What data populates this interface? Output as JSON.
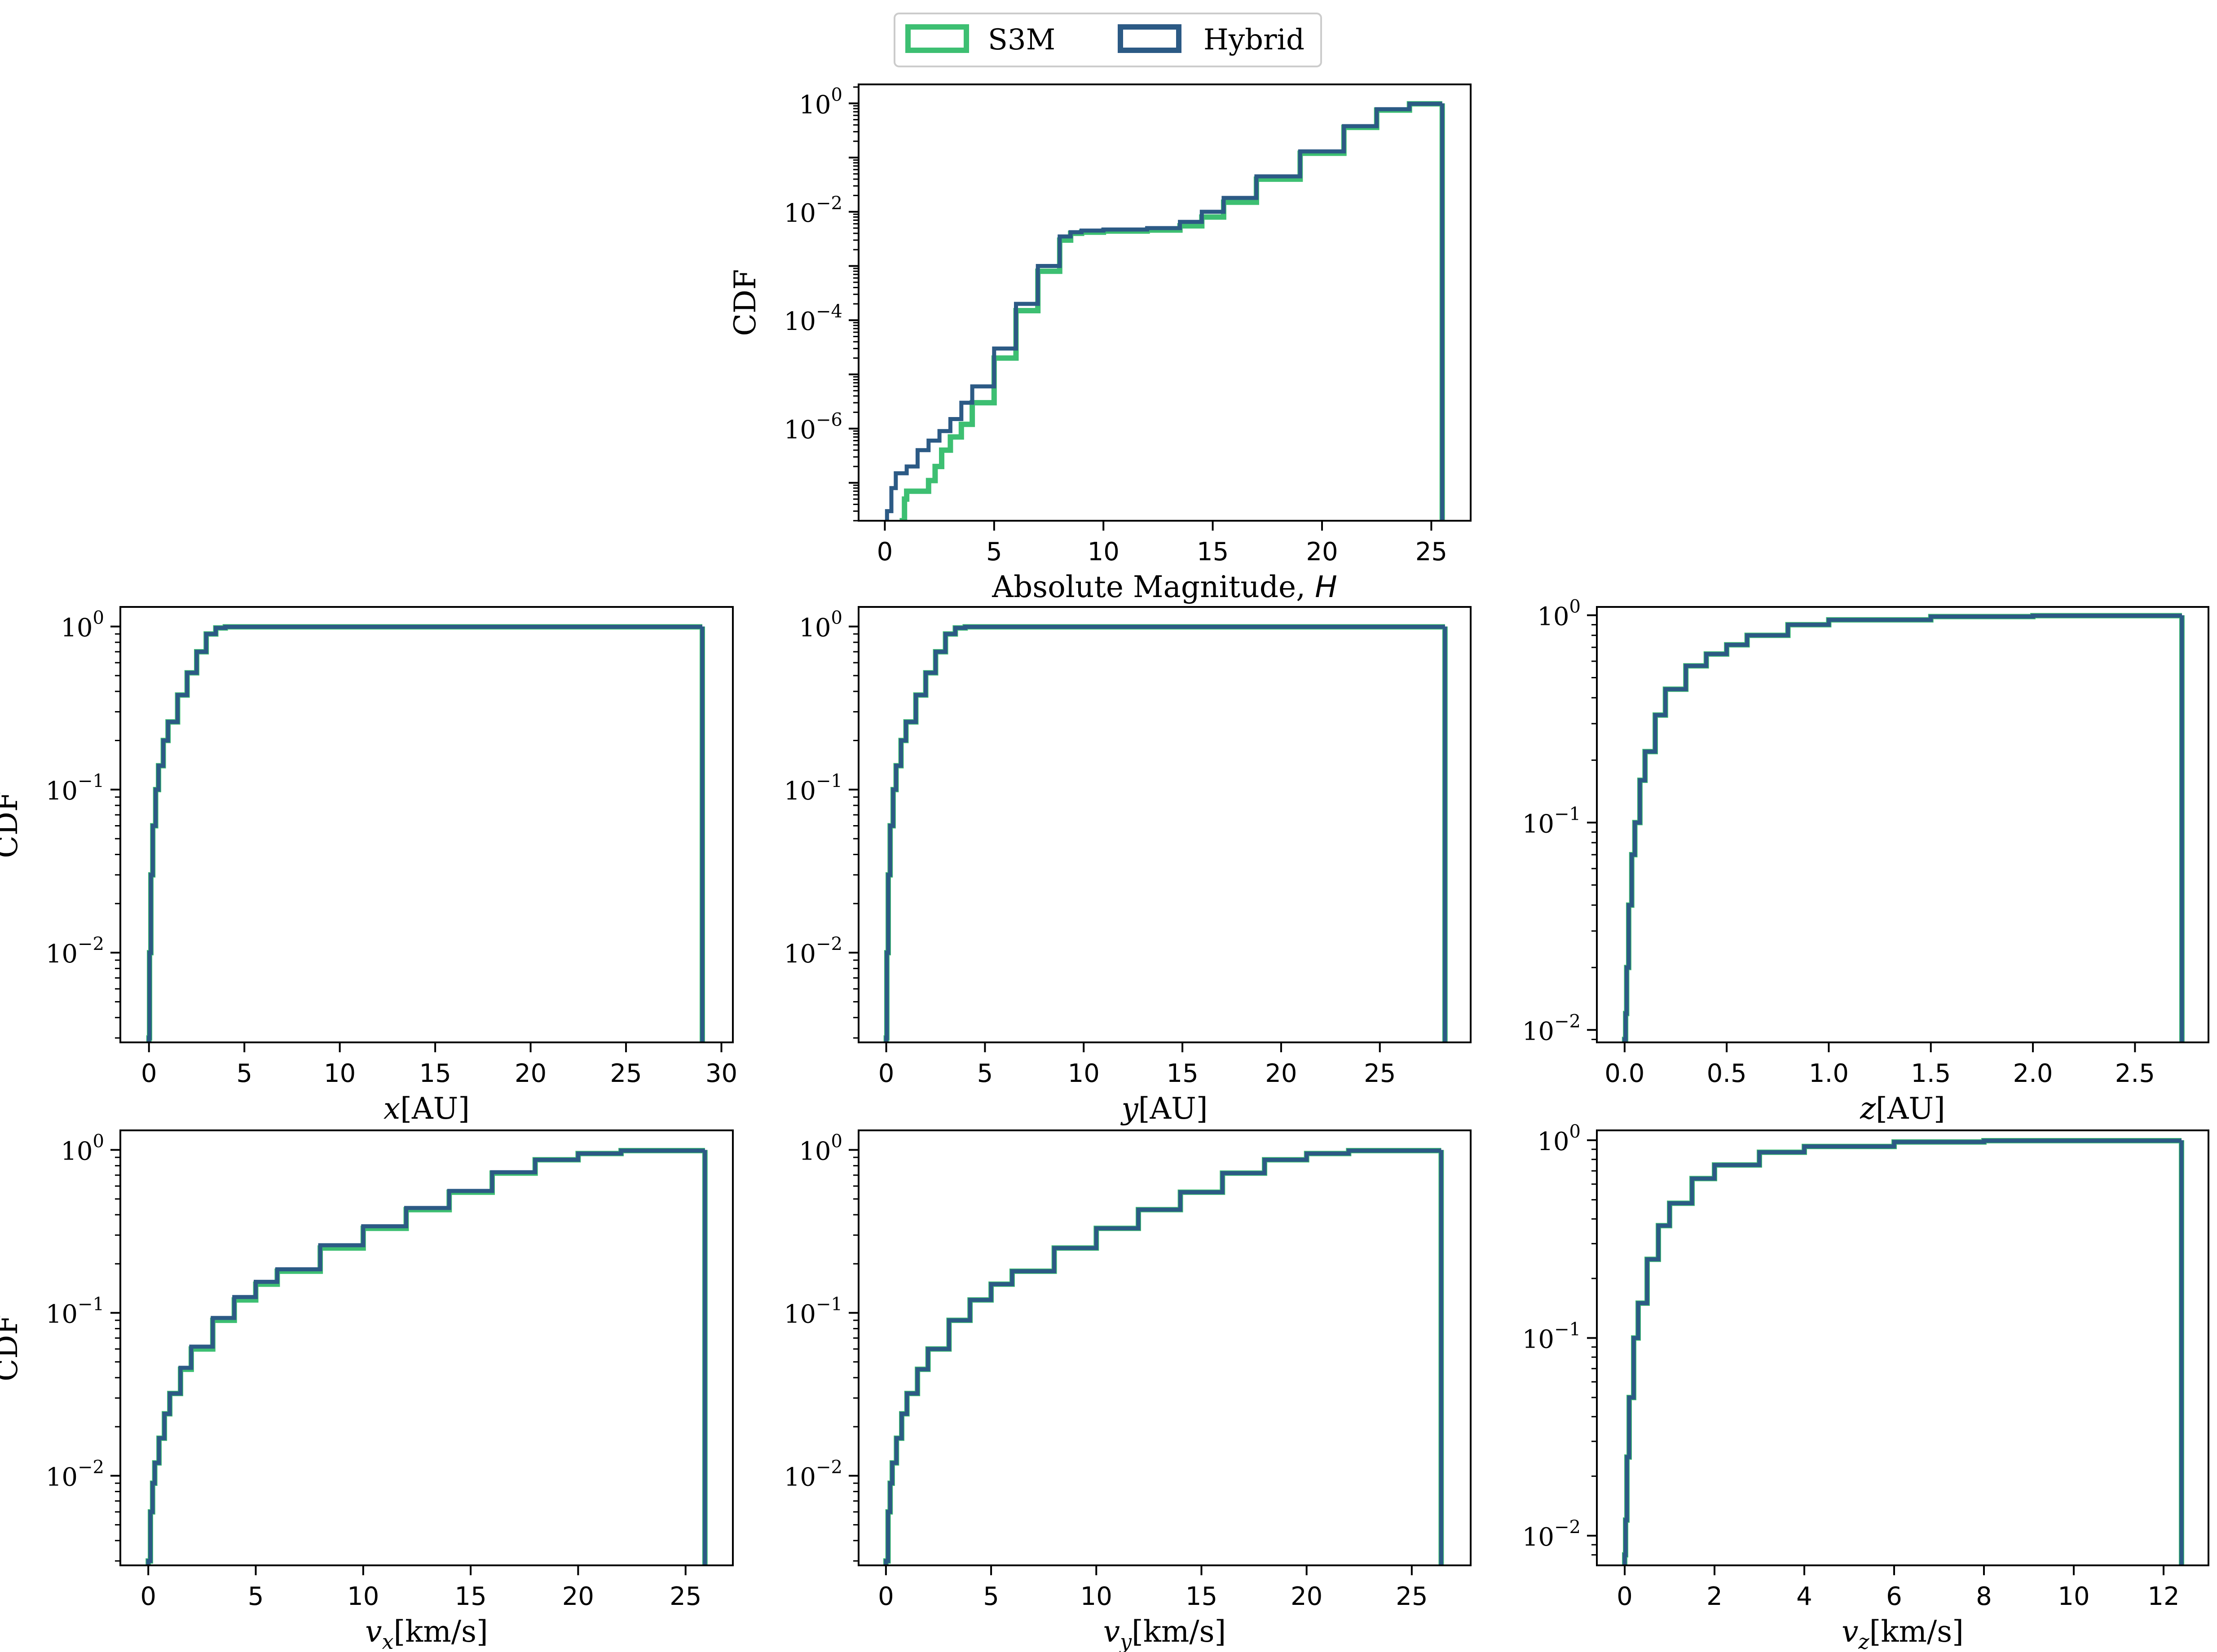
{
  "legend": {
    "items": [
      {
        "label": "S3M",
        "color": "#3dbf72"
      },
      {
        "label": "Hybrid",
        "color": "#2c5a85"
      }
    ]
  },
  "colors": {
    "s3m": "#3dbf72",
    "hybrid": "#2c5a85",
    "axes": "#000000"
  },
  "chart_data": [
    {
      "id": "H",
      "type": "line",
      "step": true,
      "yscale": "log",
      "xlabel": "Absolute Magnitude, ",
      "xlabel_italic": "H",
      "ylabel": "CDF",
      "xlim": [
        -1.2,
        26.8
      ],
      "ylim_exp": [
        -7.7,
        0.35
      ],
      "xticks": [
        0,
        5,
        10,
        15,
        20,
        25
      ],
      "xtick_labels": [
        "0",
        "5",
        "10",
        "15",
        "20",
        "25"
      ],
      "yticks_exp": [
        -6,
        -4,
        -2,
        0
      ],
      "ytick_labels": [
        "10",
        "10",
        "10",
        "10"
      ],
      "ytick_exponents": [
        "−6",
        "−4",
        "−2",
        "0"
      ],
      "cutoff_x": 25.5,
      "series": [
        {
          "name": "S3M",
          "x": [
            0.8,
            0.9,
            1.0,
            1.8,
            2.0,
            2.3,
            2.6,
            3.0,
            3.5,
            4.0,
            5.0,
            6.0,
            7.0,
            8.0,
            8.5,
            9.0,
            10.0,
            12.0,
            13.5,
            14.5,
            15.5,
            17.0,
            19.0,
            21.0,
            22.5,
            24.0,
            25.5
          ],
          "y": [
            2e-08,
            5e-08,
            7e-08,
            7e-08,
            1.1e-07,
            2e-07,
            4e-07,
            7e-07,
            1.2e-06,
            3e-06,
            2e-05,
            0.00015,
            0.0008,
            0.003,
            0.004,
            0.0042,
            0.0044,
            0.0046,
            0.0055,
            0.008,
            0.015,
            0.04,
            0.12,
            0.36,
            0.75,
            0.98,
            1.0
          ]
        },
        {
          "name": "Hybrid",
          "x": [
            0.1,
            0.3,
            0.5,
            1.0,
            1.5,
            2.0,
            2.5,
            3.0,
            3.5,
            4.0,
            5.0,
            6.0,
            7.0,
            8.0,
            8.5,
            9.0,
            10.0,
            12.0,
            13.5,
            14.5,
            15.5,
            17.0,
            19.0,
            21.0,
            22.5,
            24.0,
            25.5
          ],
          "y": [
            3e-08,
            8e-08,
            1.5e-07,
            2e-07,
            4e-07,
            6e-07,
            9e-07,
            1.5e-06,
            3e-06,
            6e-06,
            3e-05,
            0.0002,
            0.001,
            0.0035,
            0.0042,
            0.0045,
            0.0047,
            0.005,
            0.0065,
            0.01,
            0.018,
            0.045,
            0.13,
            0.38,
            0.78,
            0.98,
            1.0
          ]
        }
      ]
    },
    {
      "id": "x",
      "type": "line",
      "step": true,
      "yscale": "log",
      "xlabel": "x",
      "xlabel_italic": "x",
      "xlabel_unit": "[AU]",
      "ylabel": "CDF",
      "xlim": [
        -1.5,
        30.6
      ],
      "ylim_exp": [
        -2.55,
        0.12
      ],
      "xticks": [
        0,
        5,
        10,
        15,
        20,
        25,
        30
      ],
      "xtick_labels": [
        "0",
        "5",
        "10",
        "15",
        "20",
        "25",
        "30"
      ],
      "yticks_exp": [
        -2,
        -1,
        0
      ],
      "ytick_labels": [
        "10",
        "10",
        "10"
      ],
      "ytick_exponents": [
        "−2",
        "−1",
        "0"
      ],
      "cutoff_x": 29.0,
      "series": [
        {
          "name": "S3M",
          "x": [
            0.0,
            0.03,
            0.1,
            0.2,
            0.35,
            0.5,
            0.75,
            1.0,
            1.5,
            2.0,
            2.5,
            3.0,
            3.5,
            4.0,
            29.0
          ],
          "y": [
            0.003,
            0.01,
            0.03,
            0.06,
            0.1,
            0.14,
            0.2,
            0.26,
            0.38,
            0.52,
            0.7,
            0.9,
            0.98,
            0.995,
            1.0
          ]
        },
        {
          "name": "Hybrid",
          "x": [
            0.0,
            0.03,
            0.1,
            0.2,
            0.35,
            0.5,
            0.75,
            1.0,
            1.5,
            2.0,
            2.5,
            3.0,
            3.5,
            4.0,
            29.0
          ],
          "y": [
            0.003,
            0.01,
            0.03,
            0.06,
            0.1,
            0.14,
            0.2,
            0.26,
            0.38,
            0.52,
            0.7,
            0.9,
            0.98,
            0.995,
            1.0
          ]
        }
      ]
    },
    {
      "id": "y",
      "type": "line",
      "step": true,
      "yscale": "log",
      "xlabel": "y",
      "xlabel_italic": "y",
      "xlabel_unit": "[AU]",
      "ylabel": "",
      "xlim": [
        -1.4,
        29.6
      ],
      "ylim_exp": [
        -2.55,
        0.12
      ],
      "xticks": [
        0,
        5,
        10,
        15,
        20,
        25
      ],
      "xtick_labels": [
        "0",
        "5",
        "10",
        "15",
        "20",
        "25"
      ],
      "yticks_exp": [
        -2,
        -1,
        0
      ],
      "ytick_labels": [
        "10",
        "10",
        "10"
      ],
      "ytick_exponents": [
        "−2",
        "−1",
        "0"
      ],
      "cutoff_x": 28.3,
      "series": [
        {
          "name": "S3M",
          "x": [
            0.0,
            0.03,
            0.1,
            0.2,
            0.35,
            0.5,
            0.75,
            1.0,
            1.5,
            2.0,
            2.5,
            3.0,
            3.5,
            4.0,
            28.3
          ],
          "y": [
            0.003,
            0.01,
            0.03,
            0.06,
            0.1,
            0.14,
            0.2,
            0.26,
            0.38,
            0.52,
            0.7,
            0.9,
            0.98,
            0.995,
            1.0
          ]
        },
        {
          "name": "Hybrid",
          "x": [
            0.0,
            0.03,
            0.1,
            0.2,
            0.35,
            0.5,
            0.75,
            1.0,
            1.5,
            2.0,
            2.5,
            3.0,
            3.5,
            4.0,
            28.3
          ],
          "y": [
            0.003,
            0.01,
            0.03,
            0.06,
            0.1,
            0.14,
            0.2,
            0.26,
            0.38,
            0.52,
            0.7,
            0.9,
            0.98,
            0.995,
            1.0
          ]
        }
      ]
    },
    {
      "id": "z",
      "type": "line",
      "step": true,
      "yscale": "log",
      "xlabel": "z",
      "xlabel_italic": "z",
      "xlabel_unit": "[AU]",
      "ylabel": "",
      "xlim": [
        -0.136,
        2.86
      ],
      "ylim_exp": [
        -2.06,
        0.04
      ],
      "xticks": [
        0.0,
        0.5,
        1.0,
        1.5,
        2.0,
        2.5
      ],
      "xtick_labels": [
        "0.0",
        "0.5",
        "1.0",
        "1.5",
        "2.0",
        "2.5"
      ],
      "yticks_exp": [
        -2,
        -1,
        0
      ],
      "ytick_labels": [
        "10",
        "10",
        "10"
      ],
      "ytick_exponents": [
        "−2",
        "−1",
        "0"
      ],
      "cutoff_x": 2.73,
      "series": [
        {
          "name": "S3M",
          "x": [
            0.0,
            0.005,
            0.01,
            0.02,
            0.035,
            0.05,
            0.075,
            0.1,
            0.15,
            0.2,
            0.3,
            0.4,
            0.5,
            0.6,
            0.8,
            1.0,
            1.5,
            2.0,
            2.73
          ],
          "y": [
            0.009,
            0.012,
            0.02,
            0.04,
            0.07,
            0.1,
            0.16,
            0.22,
            0.33,
            0.44,
            0.57,
            0.65,
            0.72,
            0.8,
            0.9,
            0.95,
            0.985,
            0.995,
            1.0
          ]
        },
        {
          "name": "Hybrid",
          "x": [
            0.0,
            0.005,
            0.01,
            0.02,
            0.035,
            0.05,
            0.075,
            0.1,
            0.15,
            0.2,
            0.3,
            0.4,
            0.5,
            0.6,
            0.8,
            1.0,
            1.5,
            2.0,
            2.73
          ],
          "y": [
            0.009,
            0.012,
            0.02,
            0.04,
            0.07,
            0.1,
            0.16,
            0.22,
            0.33,
            0.44,
            0.57,
            0.65,
            0.72,
            0.8,
            0.9,
            0.95,
            0.985,
            0.995,
            1.0
          ]
        }
      ]
    },
    {
      "id": "vx",
      "type": "line",
      "step": true,
      "yscale": "log",
      "xlabel": "v",
      "xlabel_italic": "v",
      "xlabel_sub": "x",
      "xlabel_unit": "[km/s]",
      "ylabel": "CDF",
      "xlim": [
        -1.3,
        27.2
      ],
      "ylim_exp": [
        -2.55,
        0.12
      ],
      "xticks": [
        0,
        5,
        10,
        15,
        20,
        25
      ],
      "xtick_labels": [
        "0",
        "5",
        "10",
        "15",
        "20",
        "25"
      ],
      "yticks_exp": [
        -2,
        -1,
        0
      ],
      "ytick_labels": [
        "10",
        "10",
        "10"
      ],
      "ytick_exponents": [
        "−2",
        "−1",
        "0"
      ],
      "cutoff_x": 25.9,
      "series": [
        {
          "name": "S3M",
          "x": [
            0.0,
            0.1,
            0.2,
            0.3,
            0.5,
            0.75,
            1.0,
            1.5,
            2.0,
            3.0,
            4.0,
            5.0,
            6.0,
            8.0,
            10.0,
            12.0,
            14.0,
            16.0,
            18.0,
            20.0,
            22.0,
            25.9
          ],
          "y": [
            0.003,
            0.006,
            0.009,
            0.012,
            0.017,
            0.024,
            0.032,
            0.045,
            0.06,
            0.09,
            0.12,
            0.15,
            0.18,
            0.25,
            0.33,
            0.43,
            0.55,
            0.72,
            0.87,
            0.95,
            0.99,
            1.0
          ]
        },
        {
          "name": "Hybrid",
          "x": [
            0.0,
            0.1,
            0.2,
            0.3,
            0.5,
            0.75,
            1.0,
            1.5,
            2.0,
            3.0,
            4.0,
            5.0,
            6.0,
            8.0,
            10.0,
            12.0,
            14.0,
            16.0,
            18.0,
            20.0,
            22.0,
            25.9
          ],
          "y": [
            0.003,
            0.006,
            0.009,
            0.012,
            0.017,
            0.024,
            0.032,
            0.046,
            0.062,
            0.093,
            0.125,
            0.155,
            0.185,
            0.26,
            0.34,
            0.44,
            0.56,
            0.73,
            0.87,
            0.95,
            0.99,
            1.0
          ]
        }
      ]
    },
    {
      "id": "vy",
      "type": "line",
      "step": true,
      "yscale": "log",
      "xlabel": "v",
      "xlabel_italic": "v",
      "xlabel_sub": "y",
      "xlabel_unit": "[km/s]",
      "ylabel": "",
      "xlim": [
        -1.3,
        27.8
      ],
      "ylim_exp": [
        -2.55,
        0.12
      ],
      "xticks": [
        0,
        5,
        10,
        15,
        20,
        25
      ],
      "xtick_labels": [
        "0",
        "5",
        "10",
        "15",
        "20",
        "25"
      ],
      "yticks_exp": [
        -2,
        -1,
        0
      ],
      "ytick_labels": [
        "10",
        "10",
        "10"
      ],
      "ytick_exponents": [
        "−2",
        "−1",
        "0"
      ],
      "cutoff_x": 26.4,
      "series": [
        {
          "name": "S3M",
          "x": [
            0.0,
            0.1,
            0.2,
            0.3,
            0.5,
            0.75,
            1.0,
            1.5,
            2.0,
            3.0,
            4.0,
            5.0,
            6.0,
            8.0,
            10.0,
            12.0,
            14.0,
            16.0,
            18.0,
            20.0,
            22.0,
            26.4
          ],
          "y": [
            0.003,
            0.006,
            0.009,
            0.012,
            0.017,
            0.024,
            0.032,
            0.045,
            0.06,
            0.09,
            0.12,
            0.15,
            0.18,
            0.25,
            0.33,
            0.43,
            0.55,
            0.72,
            0.87,
            0.95,
            0.99,
            1.0
          ]
        },
        {
          "name": "Hybrid",
          "x": [
            0.0,
            0.1,
            0.2,
            0.3,
            0.5,
            0.75,
            1.0,
            1.5,
            2.0,
            3.0,
            4.0,
            5.0,
            6.0,
            8.0,
            10.0,
            12.0,
            14.0,
            16.0,
            18.0,
            20.0,
            22.0,
            26.4
          ],
          "y": [
            0.003,
            0.006,
            0.009,
            0.012,
            0.017,
            0.024,
            0.032,
            0.045,
            0.06,
            0.09,
            0.12,
            0.15,
            0.18,
            0.25,
            0.33,
            0.43,
            0.55,
            0.72,
            0.87,
            0.95,
            0.99,
            1.0
          ]
        }
      ]
    },
    {
      "id": "vz",
      "type": "line",
      "step": true,
      "yscale": "log",
      "xlabel": "v",
      "xlabel_italic": "v",
      "xlabel_sub": "z",
      "xlabel_unit": "[km/s]",
      "ylabel": "",
      "xlim": [
        -0.62,
        13.0
      ],
      "ylim_exp": [
        -2.15,
        0.05
      ],
      "xticks": [
        0,
        2,
        4,
        6,
        8,
        10,
        12
      ],
      "xtick_labels": [
        "0",
        "2",
        "4",
        "6",
        "8",
        "10",
        "12"
      ],
      "yticks_exp": [
        -2,
        -1,
        0
      ],
      "ytick_labels": [
        "10",
        "10",
        "10"
      ],
      "ytick_exponents": [
        "−2",
        "−1",
        "0"
      ],
      "cutoff_x": 12.4,
      "series": [
        {
          "name": "S3M",
          "x": [
            0.0,
            0.02,
            0.05,
            0.1,
            0.2,
            0.3,
            0.5,
            0.75,
            1.0,
            1.5,
            2.0,
            3.0,
            4.0,
            6.0,
            8.0,
            12.4
          ],
          "y": [
            0.008,
            0.012,
            0.025,
            0.05,
            0.1,
            0.15,
            0.25,
            0.37,
            0.48,
            0.64,
            0.75,
            0.87,
            0.93,
            0.98,
            0.995,
            1.0
          ]
        },
        {
          "name": "Hybrid",
          "x": [
            0.0,
            0.02,
            0.05,
            0.1,
            0.2,
            0.3,
            0.5,
            0.75,
            1.0,
            1.5,
            2.0,
            3.0,
            4.0,
            6.0,
            8.0,
            12.4
          ],
          "y": [
            0.008,
            0.012,
            0.025,
            0.05,
            0.1,
            0.15,
            0.25,
            0.37,
            0.48,
            0.64,
            0.75,
            0.87,
            0.93,
            0.98,
            0.995,
            1.0
          ]
        }
      ]
    }
  ]
}
